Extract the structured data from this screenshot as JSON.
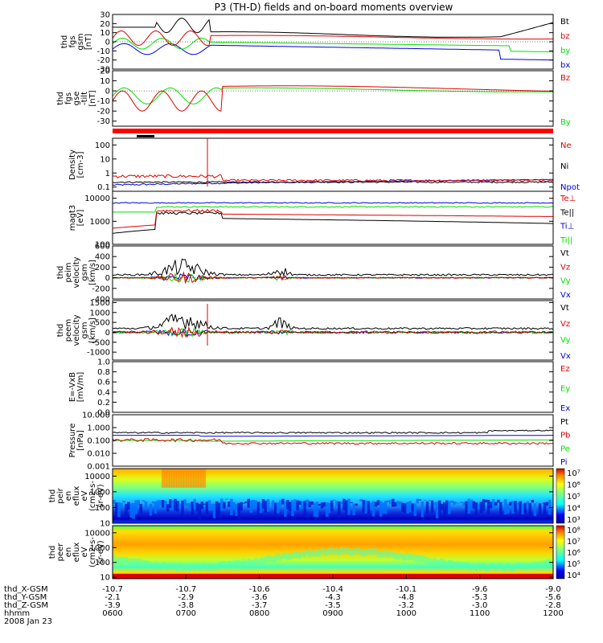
{
  "title": "P3 (TH-D) fields and on-board moments overview",
  "colors": {
    "black": "#000000",
    "red": "#e00000",
    "green": "#00e000",
    "blue": "#0000e0",
    "bar": "#ff0000"
  },
  "chart_data": [
    {
      "type": "line",
      "name": "panel-fgs-gsm",
      "ylabel": [
        "thd",
        "fgs",
        "gsm",
        "[nT]"
      ],
      "yticks": [
        30,
        20,
        10,
        0,
        -10,
        -20,
        -30
      ],
      "ylim": [
        -30,
        30
      ],
      "legend": [
        {
          "name": "Bt",
          "color": "#000000"
        },
        {
          "name": "bz",
          "color": "#e00000"
        },
        {
          "name": "by",
          "color": "#00e000"
        },
        {
          "name": "bx",
          "color": "#0000e0"
        }
      ]
    },
    {
      "type": "line",
      "name": "panel-fgs-gse",
      "ylabel": [
        "thd",
        "fgs",
        "gse",
        "-tilt",
        "[nT]"
      ],
      "yticks": [
        20,
        10,
        0,
        -10,
        -20,
        -30
      ],
      "ylim": [
        -35,
        20
      ],
      "legend": [
        {
          "name": "Bz",
          "color": "#e00000"
        },
        {
          "name": "By",
          "color": "#00e000"
        }
      ]
    },
    {
      "type": "line",
      "name": "panel-density",
      "ylabel": [
        "Density",
        "[cm-3]"
      ],
      "yticks": [
        "100",
        "10",
        "1",
        "0.1"
      ],
      "ylim": [
        0.05,
        300
      ],
      "log": true,
      "legend": [
        {
          "name": "Ne",
          "color": "#e00000"
        },
        {
          "name": "Ni",
          "color": "#000000"
        },
        {
          "name": "Npot",
          "color": "#0000e0"
        }
      ]
    },
    {
      "type": "line",
      "name": "panel-temperature",
      "ylabel": [
        "magt3",
        "[eV]"
      ],
      "yticks": [
        "10000",
        "1000",
        "100"
      ],
      "ylim": [
        100,
        20000
      ],
      "log": true,
      "legend": [
        {
          "name": "Te⊥",
          "color": "#e00000"
        },
        {
          "name": "Te||",
          "color": "#000000"
        },
        {
          "name": "Ti⊥",
          "color": "#0000e0"
        },
        {
          "name": "Ti||",
          "color": "#00e000"
        }
      ]
    },
    {
      "type": "line",
      "name": "panel-peim-velocity",
      "ylabel": [
        "thd",
        "peim",
        "velocity",
        "gsm",
        "[km/s]"
      ],
      "yticks": [
        600,
        400,
        200,
        0,
        -200,
        -400
      ],
      "ylim": [
        -400,
        600
      ],
      "legend": [
        {
          "name": "Vt",
          "color": "#000000"
        },
        {
          "name": "Vz",
          "color": "#e00000"
        },
        {
          "name": "Vy",
          "color": "#00e000"
        },
        {
          "name": "Vx",
          "color": "#0000e0"
        }
      ]
    },
    {
      "type": "line",
      "name": "panel-peem-velocity",
      "ylabel": [
        "thd",
        "peem",
        "velocity",
        "gsm",
        "[km/s]"
      ],
      "yticks": [
        1500,
        1000,
        500,
        0,
        -500,
        -1000
      ],
      "ylim": [
        -1400,
        1600
      ],
      "legend": [
        {
          "name": "Vt",
          "color": "#000000"
        },
        {
          "name": "Vz",
          "color": "#e00000"
        },
        {
          "name": "Vy",
          "color": "#00e000"
        },
        {
          "name": "Vx",
          "color": "#0000e0"
        }
      ]
    },
    {
      "type": "line",
      "name": "panel-efield",
      "ylabel": [
        "E=-VxB",
        "[mV/m]"
      ],
      "yticks": [
        "1.0",
        "0.8",
        "0.6",
        "0.4",
        "0.2",
        "0.0"
      ],
      "ylim": [
        0,
        1
      ],
      "legend": [
        {
          "name": "Ez",
          "color": "#e00000"
        },
        {
          "name": "Ey",
          "color": "#00e000"
        },
        {
          "name": "Ex",
          "color": "#0000e0"
        }
      ]
    },
    {
      "type": "line",
      "name": "panel-pressure",
      "ylabel": [
        "Pressure",
        "[nPa]"
      ],
      "yticks": [
        "10.000",
        "1.000",
        "0.100",
        "0.010",
        "0.001"
      ],
      "ylim": [
        0.001,
        10
      ],
      "log": true,
      "legend": [
        {
          "name": "Pt",
          "color": "#000000"
        },
        {
          "name": "Pb",
          "color": "#e00000"
        },
        {
          "name": "Pe",
          "color": "#00e000"
        },
        {
          "name": "Pi",
          "color": "#0000e0"
        }
      ]
    },
    {
      "type": "heatmap",
      "name": "panel-peir-spectrogram",
      "ylabel": [
        "thd",
        "peir",
        "en",
        "eflux",
        "eV",
        "(cm2-s-",
        "sr-eV)"
      ],
      "yticks": [
        "10000",
        "1000",
        "100",
        "10"
      ],
      "ylim": [
        10,
        30000
      ],
      "log": true,
      "colorbar": [
        "10⁷",
        "10⁶",
        "10⁵",
        "10⁴",
        "10³"
      ]
    },
    {
      "type": "heatmap",
      "name": "panel-peer-spectrogram",
      "ylabel": [
        "thd",
        "peer",
        "en",
        "eflux",
        "eV",
        "(cm2-s-",
        "sr-eV)"
      ],
      "yticks": [
        "10000",
        "1000",
        "100",
        "10"
      ],
      "ylim": [
        8,
        30000
      ],
      "log": true,
      "colorbar": [
        "10⁸",
        "10⁷",
        "10⁶",
        "10⁵",
        "10⁴"
      ]
    }
  ],
  "x_axis": {
    "rows": [
      {
        "label": "thd_X-GSM",
        "values": [
          "-10.7",
          "-10.7",
          "-10.6",
          "-10.4",
          "-10.1",
          "-9.6",
          "-9.0"
        ]
      },
      {
        "label": "thd_Y-GSM",
        "values": [
          "-2.1",
          "-2.9",
          "-3.6",
          "-4.3",
          "-4.8",
          "-5.3",
          "-5.6"
        ]
      },
      {
        "label": "thd_Z-GSM",
        "values": [
          "-3.9",
          "-3.8",
          "-3.7",
          "-3.5",
          "-3.2",
          "-3.0",
          "-2.8"
        ]
      },
      {
        "label": "hhmm",
        "values": [
          "0600",
          "0700",
          "0800",
          "0900",
          "1000",
          "1100",
          "1200"
        ]
      }
    ],
    "date": "2008 Jan 23"
  }
}
